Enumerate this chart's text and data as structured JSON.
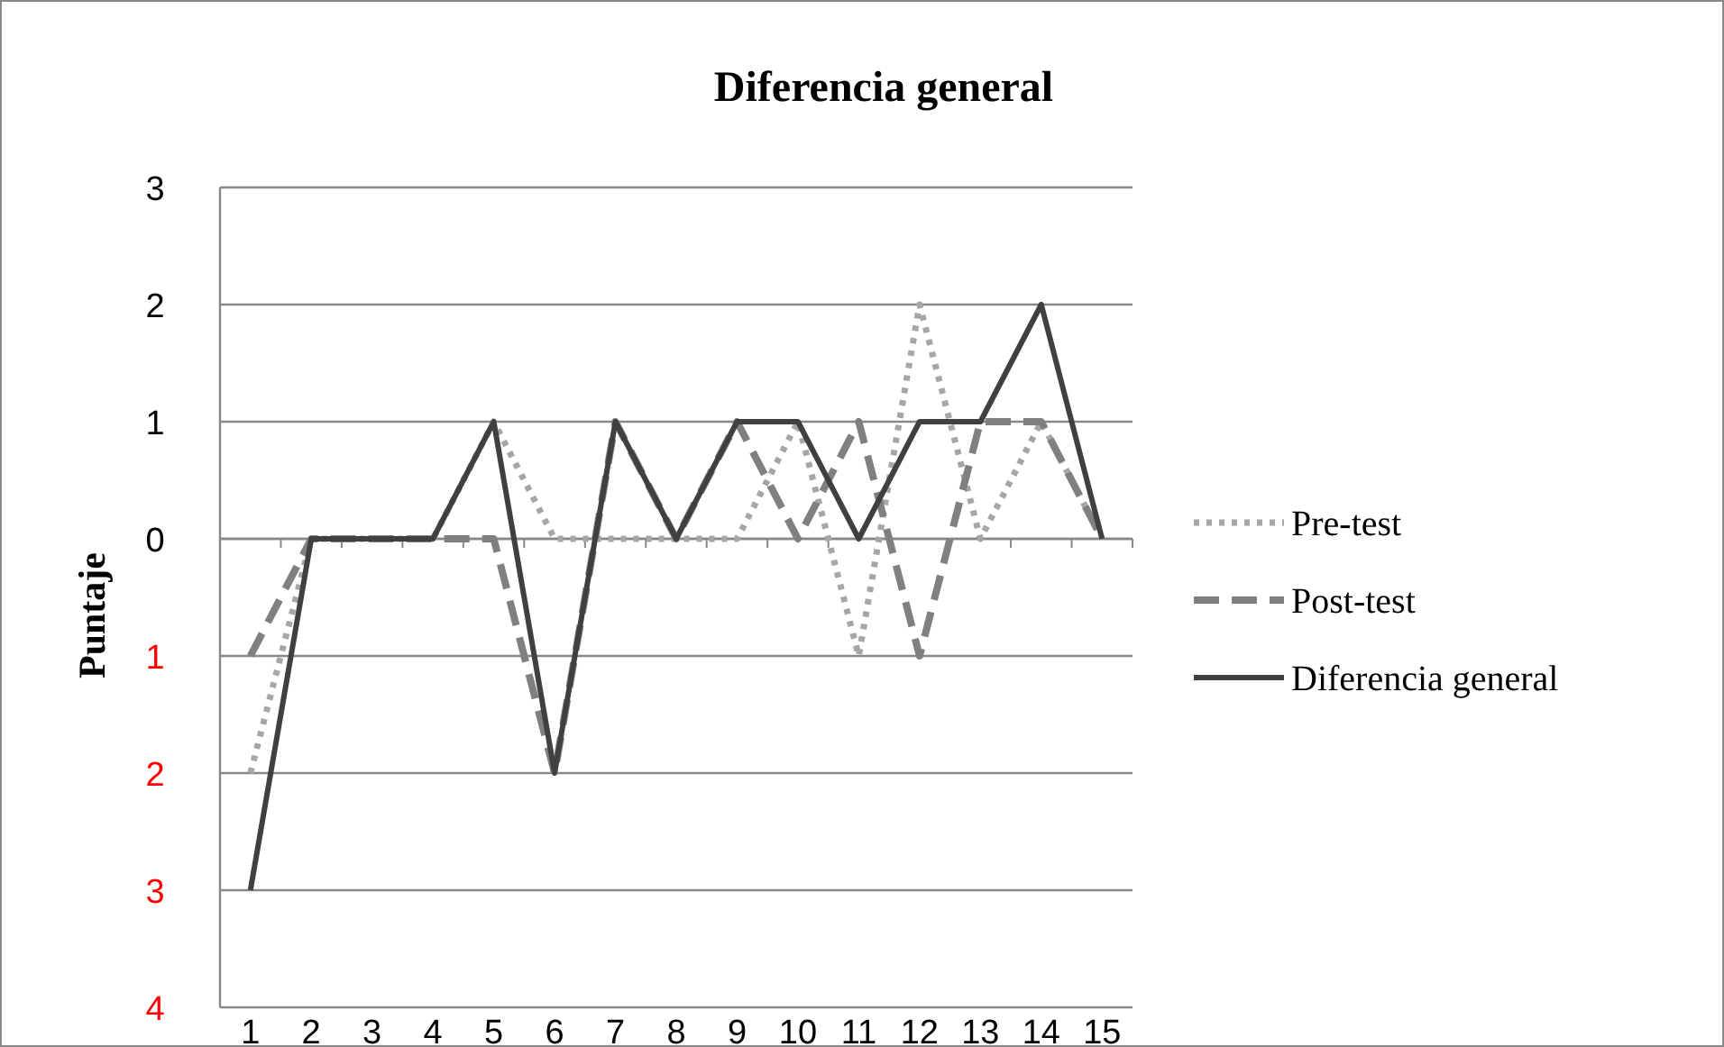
{
  "chart_data": {
    "type": "line",
    "title": "Diferencia general",
    "ylabel": "Puntaje",
    "categories": [
      "1",
      "2",
      "3",
      "4",
      "5",
      "6",
      "7",
      "8",
      "9",
      "10",
      "11",
      "12",
      "13",
      "14",
      "15"
    ],
    "series": [
      {
        "name": "Pre-test",
        "color": "#a6a6a6",
        "line_style": "dotted",
        "values": [
          -2,
          0,
          0,
          0,
          1,
          0,
          0,
          0,
          0,
          1,
          -1,
          2,
          0,
          1,
          0
        ]
      },
      {
        "name": "Post-test",
        "color": "#808080",
        "line_style": "dashed",
        "values": [
          -1,
          0,
          0,
          0,
          0,
          -2,
          1,
          0,
          1,
          0,
          1,
          -1,
          1,
          1,
          0
        ]
      },
      {
        "name": "Diferencia general",
        "color": "#404040",
        "line_style": "solid",
        "values": [
          -3,
          0,
          0,
          0,
          1,
          -2,
          1,
          0,
          1,
          1,
          0,
          1,
          1,
          2,
          0
        ]
      }
    ],
    "ylim": [
      -4,
      3
    ],
    "yticks": [
      {
        "value": -4,
        "label": "4"
      },
      {
        "value": -3,
        "label": "3"
      },
      {
        "value": -2,
        "label": "2"
      },
      {
        "value": -1,
        "label": "1"
      },
      0,
      1,
      2,
      3
    ],
    "grid": "y",
    "legend": "right",
    "marker": "none"
  }
}
